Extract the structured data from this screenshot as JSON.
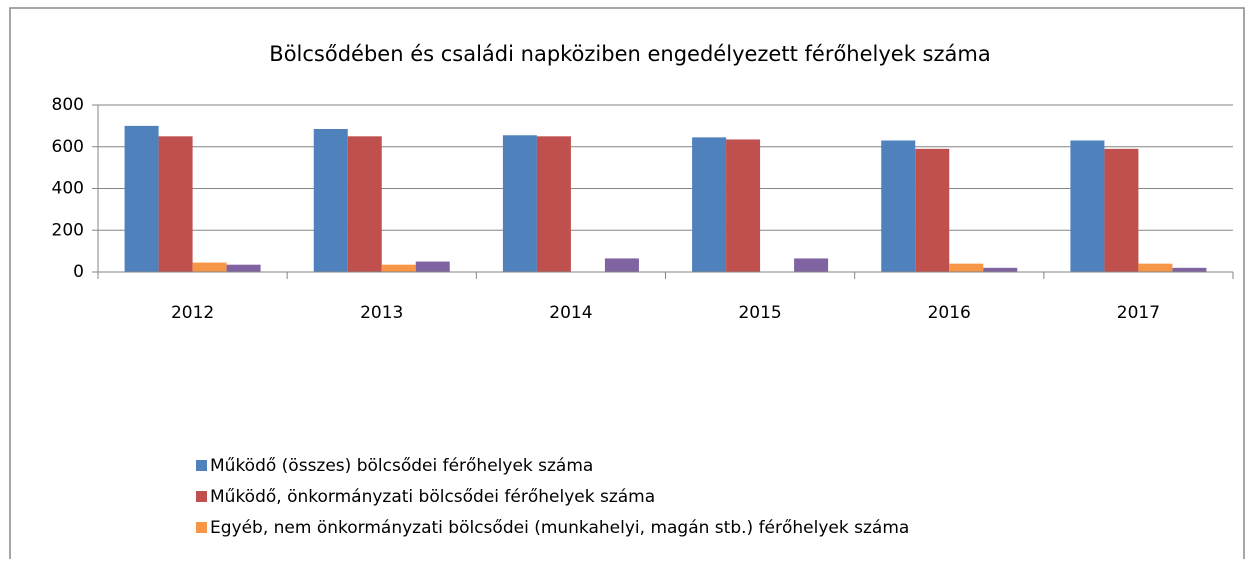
{
  "chart_data": {
    "type": "bar",
    "title": "Bölcsődében és családi napköziben engedélyezett férőhelyek száma",
    "categories": [
      "2012",
      "2013",
      "2014",
      "2015",
      "2016",
      "2017"
    ],
    "series": [
      {
        "name": "Működő (összes) bölcsődei férőhelyek száma",
        "color": "#4f81bd",
        "values": [
          700,
          685,
          655,
          645,
          630,
          630
        ]
      },
      {
        "name": "Működő, önkormányzati bölcsődei férőhelyek száma",
        "color": "#c0504d",
        "values": [
          650,
          650,
          650,
          635,
          590,
          590
        ]
      },
      {
        "name": "Egyéb, nem önkormányzati bölcsődei (munkahelyi, magán stb.) férőhelyek száma",
        "color": "#f79646",
        "values": [
          45,
          35,
          0,
          0,
          40,
          40
        ]
      },
      {
        "color": "#8064a2",
        "values": [
          35,
          50,
          65,
          65,
          20,
          20
        ]
      }
    ],
    "ylim": [
      0,
      800
    ],
    "yticks": [
      0,
      200,
      400,
      600,
      800
    ],
    "grid": true
  }
}
